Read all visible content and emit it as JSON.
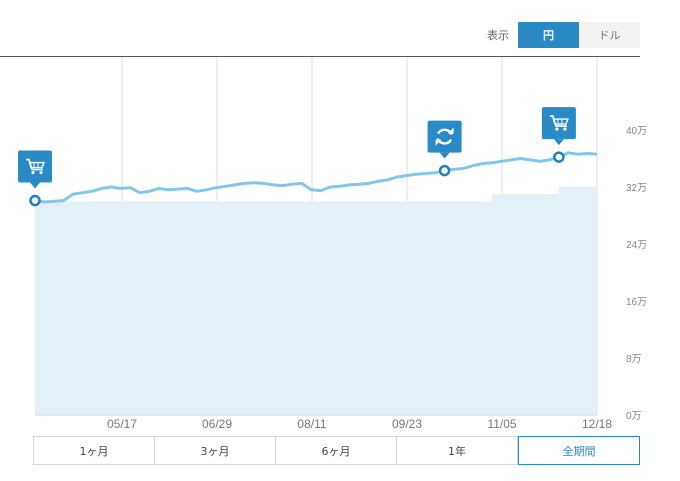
{
  "display_label": "表示",
  "currency_toggle": {
    "yen": "円",
    "dollar": "ドル",
    "selected": "円"
  },
  "range_buttons": [
    "1ヶ月",
    "3ヶ月",
    "6ヶ月",
    "1年",
    "全期間"
  ],
  "selected_range": "全期間",
  "colors": {
    "accent": "#2a8ac6",
    "line": "#82c6ea",
    "area": "#e4f0f8"
  },
  "chart_data": {
    "type": "area",
    "x_ticks": [
      "05/17",
      "06/29",
      "08/11",
      "09/23",
      "11/05",
      "12/18"
    ],
    "y_ticks": [
      "0万",
      "8万",
      "16万",
      "24万",
      "32万",
      "40万"
    ],
    "ylim": [
      0,
      48
    ],
    "series": [
      {
        "role": "value",
        "points": [
          [
            0,
            30.1
          ],
          [
            1,
            29.9
          ],
          [
            2,
            30.0
          ],
          [
            3,
            30.1
          ],
          [
            4,
            31.0
          ],
          [
            5,
            31.2
          ],
          [
            6,
            31.4
          ],
          [
            7,
            31.8
          ],
          [
            8,
            32.0
          ],
          [
            9,
            31.8
          ],
          [
            10,
            31.9
          ],
          [
            11,
            31.2
          ],
          [
            12,
            31.4
          ],
          [
            13,
            31.8
          ],
          [
            14,
            31.6
          ],
          [
            15,
            31.7
          ],
          [
            16,
            31.8
          ],
          [
            17,
            31.4
          ],
          [
            18,
            31.6
          ],
          [
            19,
            31.9
          ],
          [
            20,
            32.1
          ],
          [
            21,
            32.3
          ],
          [
            22,
            32.5
          ],
          [
            23,
            32.6
          ],
          [
            24,
            32.5
          ],
          [
            25,
            32.3
          ],
          [
            26,
            32.2
          ],
          [
            27,
            32.4
          ],
          [
            28,
            32.5
          ],
          [
            29,
            31.6
          ],
          [
            30,
            31.5
          ],
          [
            31,
            32.0
          ],
          [
            32,
            32.1
          ],
          [
            33,
            32.3
          ],
          [
            34,
            32.4
          ],
          [
            35,
            32.5
          ],
          [
            36,
            32.8
          ],
          [
            37,
            33.0
          ],
          [
            38,
            33.4
          ],
          [
            39,
            33.6
          ],
          [
            40,
            33.8
          ],
          [
            41,
            33.9
          ],
          [
            42,
            34.0
          ],
          [
            43,
            34.3
          ],
          [
            44,
            34.5
          ],
          [
            45,
            34.6
          ],
          [
            46,
            35.0
          ],
          [
            47,
            35.3
          ],
          [
            48,
            35.4
          ],
          [
            49,
            35.6
          ],
          [
            50,
            35.8
          ],
          [
            51,
            36.0
          ],
          [
            52,
            35.8
          ],
          [
            53,
            35.6
          ],
          [
            54,
            35.8
          ],
          [
            55,
            36.2
          ],
          [
            56,
            36.8
          ],
          [
            57,
            36.6
          ],
          [
            58,
            36.7
          ],
          [
            59,
            36.6
          ]
        ]
      },
      {
        "role": "principal",
        "points": [
          [
            0,
            30.0
          ],
          [
            48,
            30.0
          ],
          [
            48,
            31.0
          ],
          [
            55,
            31.0
          ],
          [
            55,
            32.0
          ],
          [
            59,
            32.0
          ]
        ]
      }
    ],
    "events": [
      {
        "type": "buy",
        "icon": "cart-icon",
        "at": 0
      },
      {
        "type": "rebalance",
        "icon": "refresh-icon",
        "at": 43
      },
      {
        "type": "buy",
        "icon": "cart-icon",
        "at": 55
      }
    ]
  }
}
